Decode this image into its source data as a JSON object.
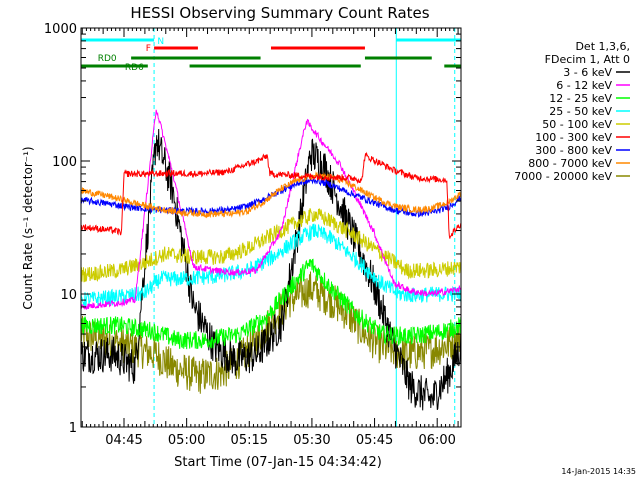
{
  "chart_data": {
    "type": "line",
    "title": "HESSI Observing Summary Count Rates",
    "ylabel": "Count Rate (s⁻¹ detector⁻¹)",
    "xlabel": "Start Time (07-Jan-15 04:34:42)",
    "yscale": "log",
    "ylim": [
      1,
      1000
    ],
    "xlim_minutes": [
      0,
      91
    ],
    "y_ticks": [
      "1",
      "10",
      "100",
      "1000"
    ],
    "x_ticks": [
      {
        "t": 10.3,
        "label": "04:45"
      },
      {
        "t": 25.3,
        "label": "05:00"
      },
      {
        "t": 40.3,
        "label": "05:15"
      },
      {
        "t": 55.3,
        "label": "05:30"
      },
      {
        "t": 70.3,
        "label": "05:45"
      },
      {
        "t": 85.3,
        "label": "06:00"
      }
    ],
    "timestamp": "14-Jan-2015 14:35",
    "legend_header": [
      "Det 1,3,6,",
      "FDecim 1, Att 0"
    ],
    "series": [
      {
        "name": "3 - 6 keV",
        "color": "#000000",
        "points": [
          [
            0,
            3.5
          ],
          [
            8,
            3.5
          ],
          [
            13,
            2.8
          ],
          [
            18,
            150
          ],
          [
            22,
            60
          ],
          [
            27,
            8
          ],
          [
            32,
            4
          ],
          [
            37,
            3.2
          ],
          [
            42,
            3.5
          ],
          [
            48,
            6
          ],
          [
            52,
            30
          ],
          [
            55,
            115
          ],
          [
            58,
            95
          ],
          [
            63,
            40
          ],
          [
            70,
            12
          ],
          [
            75,
            4
          ],
          [
            79,
            2
          ],
          [
            84,
            1.6
          ],
          [
            88,
            2.5
          ],
          [
            91,
            4
          ]
        ]
      },
      {
        "name": "6 - 12 keV",
        "color": "#ff00ff",
        "points": [
          [
            0,
            8
          ],
          [
            8,
            8.5
          ],
          [
            13,
            9
          ],
          [
            18,
            250
          ],
          [
            22,
            80
          ],
          [
            27,
            16
          ],
          [
            32,
            15
          ],
          [
            37,
            14.5
          ],
          [
            42,
            15
          ],
          [
            48,
            30
          ],
          [
            52,
            110
          ],
          [
            54,
            200
          ],
          [
            57,
            150
          ],
          [
            62,
            95
          ],
          [
            70,
            30
          ],
          [
            75,
            12
          ],
          [
            79,
            10.5
          ],
          [
            84,
            10
          ],
          [
            88,
            10.5
          ],
          [
            91,
            11
          ]
        ]
      },
      {
        "name": "12 - 25 keV",
        "color": "#00ff00",
        "points": [
          [
            0,
            5.8
          ],
          [
            9,
            5.8
          ],
          [
            17,
            5.3
          ],
          [
            23,
            4.5
          ],
          [
            30,
            4.5
          ],
          [
            38,
            5
          ],
          [
            44,
            6.5
          ],
          [
            50,
            11
          ],
          [
            55,
            17
          ],
          [
            60,
            11
          ],
          [
            66,
            7
          ],
          [
            72,
            5
          ],
          [
            79,
            4.8
          ],
          [
            86,
            5.2
          ],
          [
            91,
            5.8
          ]
        ]
      },
      {
        "name": "25 - 50 keV",
        "color": "#00ffff",
        "points": [
          [
            0,
            9
          ],
          [
            9,
            9.5
          ],
          [
            15,
            10
          ],
          [
            19,
            13
          ],
          [
            24,
            13
          ],
          [
            32,
            13.5
          ],
          [
            40,
            15
          ],
          [
            46,
            19
          ],
          [
            52,
            26
          ],
          [
            56,
            30
          ],
          [
            60,
            26
          ],
          [
            66,
            18
          ],
          [
            72,
            12
          ],
          [
            76,
            10
          ],
          [
            80,
            9.8
          ],
          [
            86,
            10
          ],
          [
            91,
            10
          ]
        ]
      },
      {
        "name": "50 - 100 keV",
        "color": "#cccc00",
        "points": [
          [
            0,
            14
          ],
          [
            9,
            15
          ],
          [
            15,
            17
          ],
          [
            20,
            20
          ],
          [
            26,
            19
          ],
          [
            34,
            19
          ],
          [
            40,
            22
          ],
          [
            46,
            28
          ],
          [
            52,
            35
          ],
          [
            56,
            40
          ],
          [
            60,
            35
          ],
          [
            66,
            27
          ],
          [
            72,
            20
          ],
          [
            78,
            15
          ],
          [
            84,
            15
          ],
          [
            91,
            16
          ]
        ]
      },
      {
        "name": "100 - 300 keV",
        "color": "#ff0000",
        "points": [
          [
            0,
            32
          ],
          [
            8,
            30
          ],
          [
            9.7,
            29
          ],
          [
            10.3,
            80
          ],
          [
            16,
            80
          ],
          [
            22,
            81
          ],
          [
            28,
            80
          ],
          [
            35,
            83
          ],
          [
            40,
            95
          ],
          [
            43,
            102
          ],
          [
            44.6,
            110
          ],
          [
            45.2,
            80
          ],
          [
            54,
            77
          ],
          [
            63,
            75
          ],
          [
            66,
            74
          ],
          [
            67.2,
            70
          ],
          [
            68,
            110
          ],
          [
            72,
            95
          ],
          [
            75,
            85
          ],
          [
            80,
            75
          ],
          [
            85,
            73
          ],
          [
            87.6,
            72
          ],
          [
            88.2,
            27
          ],
          [
            91,
            34
          ]
        ]
      },
      {
        "name": "300 - 800 keV",
        "color": "#0000ff",
        "points": [
          [
            0,
            51
          ],
          [
            6,
            48
          ],
          [
            12,
            45
          ],
          [
            18,
            43
          ],
          [
            24,
            42
          ],
          [
            30,
            42
          ],
          [
            36,
            43
          ],
          [
            40,
            46
          ],
          [
            44,
            52
          ],
          [
            48,
            60
          ],
          [
            52,
            68
          ],
          [
            56,
            72
          ],
          [
            60,
            66
          ],
          [
            64,
            58
          ],
          [
            68,
            52
          ],
          [
            72,
            46
          ],
          [
            76,
            42
          ],
          [
            80,
            40
          ],
          [
            84,
            41
          ],
          [
            88,
            45
          ],
          [
            91,
            53
          ]
        ]
      },
      {
        "name": "800 - 7000 keV",
        "color": "#ff8800",
        "points": [
          [
            0,
            60
          ],
          [
            6,
            55
          ],
          [
            12,
            49
          ],
          [
            18,
            44
          ],
          [
            24,
            41
          ],
          [
            30,
            40
          ],
          [
            36,
            40
          ],
          [
            40,
            42
          ],
          [
            44,
            50
          ],
          [
            48,
            62
          ],
          [
            52,
            72
          ],
          [
            56,
            77
          ],
          [
            60,
            76
          ],
          [
            64,
            68
          ],
          [
            68,
            58
          ],
          [
            72,
            50
          ],
          [
            76,
            45
          ],
          [
            80,
            43
          ],
          [
            84,
            44
          ],
          [
            88,
            49
          ],
          [
            91,
            57
          ]
        ]
      },
      {
        "name": "7000 - 20000 keV",
        "color": "#888800",
        "points": [
          [
            0,
            5
          ],
          [
            6,
            4.5
          ],
          [
            12,
            4
          ],
          [
            18,
            3.5
          ],
          [
            22,
            2.8
          ],
          [
            28,
            2.4
          ],
          [
            34,
            2.6
          ],
          [
            38,
            3.2
          ],
          [
            42,
            4.5
          ],
          [
            46,
            6.5
          ],
          [
            50,
            9
          ],
          [
            55,
            11
          ],
          [
            60,
            9
          ],
          [
            64,
            7
          ],
          [
            68,
            5
          ],
          [
            72,
            4
          ],
          [
            78,
            3.5
          ],
          [
            84,
            3.8
          ],
          [
            88,
            4.2
          ],
          [
            91,
            4.8
          ]
        ]
      }
    ],
    "state_bars": [
      {
        "label": "N",
        "color": "#00ffff",
        "segments": [
          [
            0,
            17.5
          ],
          [
            75.5,
            91
          ]
        ],
        "label_at": 18.3
      },
      {
        "label": "F",
        "color": "#ff0000",
        "segments": [
          [
            17.5,
            28
          ],
          [
            45.5,
            68
          ]
        ],
        "label_at": 15.5
      },
      {
        "label": "RD0",
        "color": "#008000",
        "segments": [
          [
            12,
            43
          ],
          [
            68,
            84
          ]
        ],
        "label_at": 4
      },
      {
        "label": "RD6",
        "color": "#008000",
        "segments": [
          [
            0,
            16
          ],
          [
            26,
            67
          ],
          [
            87,
            91
          ]
        ],
        "label_at": 10.5
      }
    ],
    "vertical_markers": [
      {
        "t": 17.5,
        "color": "#00ffff",
        "style": "dashed"
      },
      {
        "t": 75.5,
        "color": "#00ffff",
        "style": "solid"
      },
      {
        "t": 89.5,
        "color": "#00ffff",
        "style": "dashed"
      }
    ]
  }
}
